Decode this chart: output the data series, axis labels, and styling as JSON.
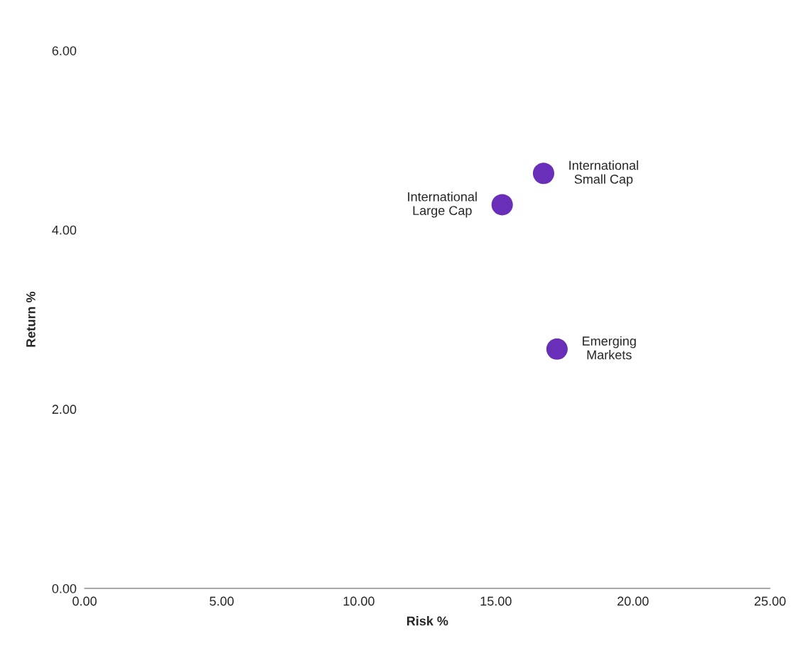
{
  "chart_data": {
    "type": "scatter",
    "xlabel": "Risk %",
    "ylabel": "Return %",
    "x": [
      15.23,
      16.74,
      17.23
    ],
    "series": [
      {
        "color": "#6a2fb8",
        "values": [
          4.28,
          4.63,
          2.67
        ]
      }
    ],
    "marker": "circle",
    "annotations": [
      {
        "text": "International\nLarge Cap",
        "x": 15.23,
        "y": 4.28
      },
      {
        "text": "International\nSmall Cap",
        "x": 16.74,
        "y": 4.63
      },
      {
        "text": "Emerging\nMarkets",
        "x": 17.23,
        "y": 2.67
      }
    ],
    "xlim": [
      0,
      25
    ],
    "ylim": [
      0,
      6
    ],
    "xticks": [
      {
        "value": 0,
        "label": "0.00"
      },
      {
        "value": 5,
        "label": "5.00"
      },
      {
        "value": 10,
        "label": "10.00"
      },
      {
        "value": 15,
        "label": "15.00"
      },
      {
        "value": 20,
        "label": "20.00"
      },
      {
        "value": 25,
        "label": "25.00"
      }
    ],
    "yticks": [
      {
        "value": 0,
        "label": "0.00"
      },
      {
        "value": 2,
        "label": "2.00"
      },
      {
        "value": 4,
        "label": "4.00"
      },
      {
        "value": 6,
        "label": "6.00"
      }
    ],
    "grid": false,
    "legend": false
  }
}
